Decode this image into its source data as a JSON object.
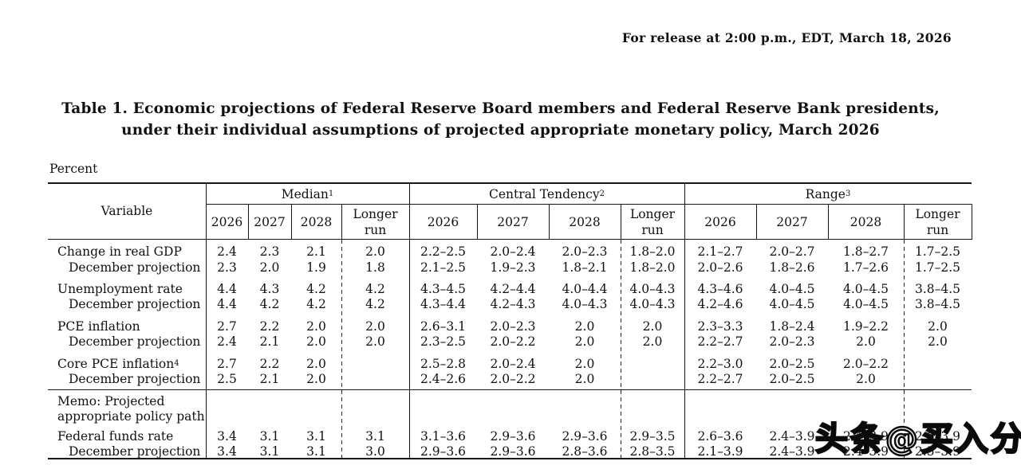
{
  "release_line": "For release at 2:00 p.m., EDT, March 18, 2026",
  "title": {
    "line1": "Table 1. Economic projections of Federal Reserve Board members and Federal Reserve Bank presidents,",
    "line2": "under their individual assumptions of projected appropriate monetary policy, March 2026"
  },
  "percent_label": "Percent",
  "table": {
    "variable_header": "Variable",
    "groups": [
      {
        "label": "Median",
        "sup": "1"
      },
      {
        "label": "Central Tendency",
        "sup": "2"
      },
      {
        "label": "Range",
        "sup": "3"
      }
    ],
    "year_headers": [
      "2026",
      "2027",
      "2028",
      "Longer run"
    ],
    "rows": [
      {
        "label": "Change in real GDP",
        "indent": false,
        "values": [
          "2.4",
          "2.3",
          "2.1",
          "2.0",
          "2.2–2.5",
          "2.0–2.4",
          "2.0–2.3",
          "1.8–2.0",
          "2.1–2.7",
          "2.0–2.7",
          "1.8–2.7",
          "1.7–2.5"
        ]
      },
      {
        "label": "December projection",
        "indent": true,
        "values": [
          "2.3",
          "2.0",
          "1.9",
          "1.8",
          "2.1–2.5",
          "1.9–2.3",
          "1.8–2.1",
          "1.8–2.0",
          "2.0–2.6",
          "1.8–2.6",
          "1.7–2.6",
          "1.7–2.5"
        ]
      },
      {
        "label": "Unemployment rate",
        "indent": false,
        "values": [
          "4.4",
          "4.3",
          "4.2",
          "4.2",
          "4.3–4.5",
          "4.2–4.4",
          "4.0–4.4",
          "4.0–4.3",
          "4.3–4.6",
          "4.0–4.5",
          "4.0–4.5",
          "3.8–4.5"
        ]
      },
      {
        "label": "December projection",
        "indent": true,
        "values": [
          "4.4",
          "4.2",
          "4.2",
          "4.2",
          "4.3–4.4",
          "4.2–4.3",
          "4.0–4.3",
          "4.0–4.3",
          "4.2–4.6",
          "4.0–4.5",
          "4.0–4.5",
          "3.8–4.5"
        ]
      },
      {
        "label": "PCE inflation",
        "indent": false,
        "values": [
          "2.7",
          "2.2",
          "2.0",
          "2.0",
          "2.6–3.1",
          "2.0–2.3",
          "2.0",
          "2.0",
          "2.3–3.3",
          "1.8–2.4",
          "1.9–2.2",
          "2.0"
        ]
      },
      {
        "label": "December projection",
        "indent": true,
        "values": [
          "2.4",
          "2.1",
          "2.0",
          "2.0",
          "2.3–2.5",
          "2.0–2.2",
          "2.0",
          "2.0",
          "2.2–2.7",
          "2.0–2.3",
          "2.0",
          "2.0"
        ]
      },
      {
        "label": "Core PCE inflation",
        "sup": "4",
        "indent": false,
        "values": [
          "2.7",
          "2.2",
          "2.0",
          "",
          "2.5–2.8",
          "2.0–2.4",
          "2.0",
          "",
          "2.2–3.0",
          "2.0–2.5",
          "2.0–2.2",
          ""
        ]
      },
      {
        "label": "December projection",
        "indent": true,
        "values": [
          "2.5",
          "2.1",
          "2.0",
          "",
          "2.4–2.6",
          "2.0–2.2",
          "2.0",
          "",
          "2.2–2.7",
          "2.0–2.5",
          "2.0",
          ""
        ]
      },
      {
        "label": "Memo: Projected",
        "memo": true
      },
      {
        "label": "appropriate policy path",
        "memo": true
      },
      {
        "label": "Federal funds rate",
        "indent": false,
        "values": [
          "3.4",
          "3.1",
          "3.1",
          "3.1",
          "3.1–3.6",
          "2.9–3.6",
          "2.9–3.6",
          "2.9–3.5",
          "2.6–3.6",
          "2.4–3.9",
          "2.4–3.9",
          "2.6–3.9"
        ]
      },
      {
        "label": "December projection",
        "indent": true,
        "values": [
          "3.4",
          "3.1",
          "3.1",
          "3.0",
          "2.9–3.6",
          "2.9–3.6",
          "2.8–3.6",
          "2.8–3.5",
          "2.1–3.9",
          "2.4–3.9",
          "2.4–3.9",
          "2.5–3.9"
        ]
      }
    ]
  },
  "watermark": "头条@买入分歧"
}
